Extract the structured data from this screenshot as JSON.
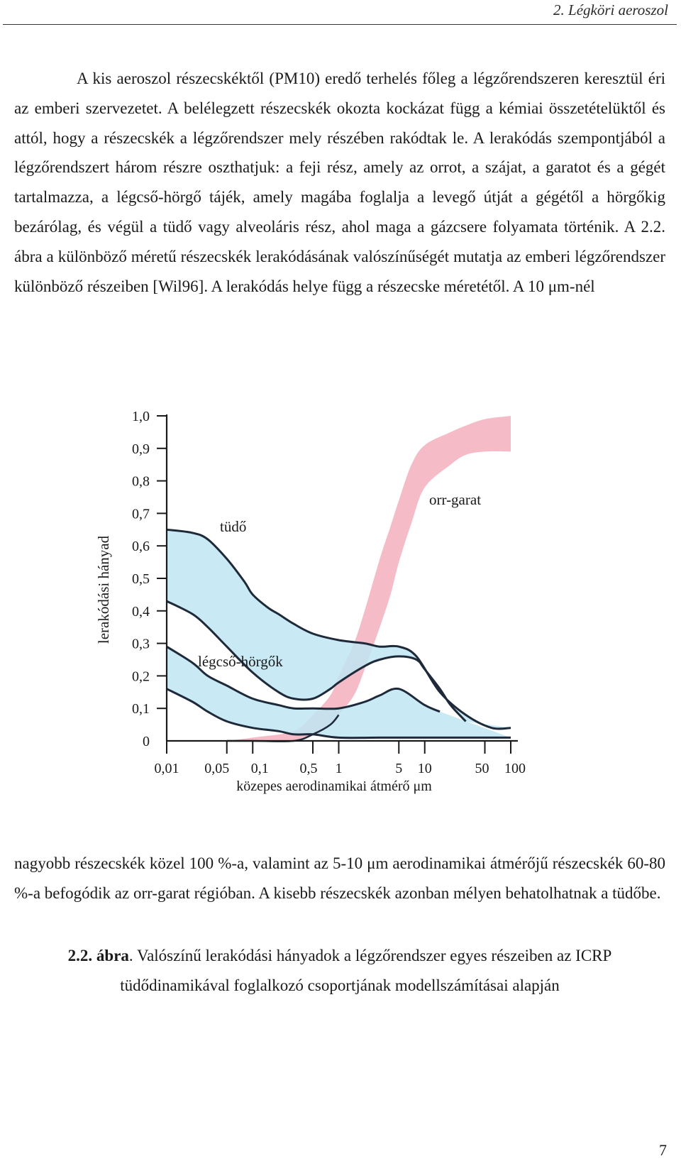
{
  "header": {
    "title": "2. Légköri aeroszol"
  },
  "paragraph1": "A kis aeroszol részecskéktől (PM10) eredő terhelés főleg a légzőrendszeren keresztül éri az emberi szervezetet. A belélegzett részecskék okozta kockázat függ a kémiai összetételüktől és attól, hogy a részecskék a légzőrendszer mely részében rakódtak le. A lerakódás szempontjából a légzőrendszert három részre oszthatjuk: a feji rész, amely az orrot, a szájat, a garatot és a gégét tartalmazza, a légcső-hörgő tájék, amely magába foglalja a levegő útját a gégétől a hörgőkig bezárólag, és végül a tüdő vagy alveoláris rész, ahol maga a gázcsere folyamata történik. A 2.2. ábra a különböző méretű részecskék lerakódásának valószínűségét mutatja az emberi légzőrendszer különböző részeiben [Wil96]. A lerakódás helye függ a részecske méretétől. A 10 μm-nél",
  "paragraph2": "nagyobb részecskék közel 100 %-a, valamint az 5-10 μm aerodinamikai átmérőjű részecskék 60-80 %-a befogódik az orr-garat régióban. A kisebb részecskék azonban mélyen behatolhatnak a tüdőbe.",
  "caption": {
    "label": "2.2. ábra",
    "text": ". Valószínű lerakódási hányadok a légzőrendszer egyes részeiben az ICRP tüdődinamikával foglalkozó csoportjának modellszámításai alapján"
  },
  "page_number": "7",
  "chart_data": {
    "type": "area",
    "xlabel": "közepes aerodinamikai átmérő μm",
    "ylabel": "lerakódási hányad",
    "x_scale": "log",
    "xlim": [
      0.01,
      100
    ],
    "ylim": [
      0,
      1.0
    ],
    "x_ticks": [
      "0,01",
      "0,05",
      "0,1",
      "0,5",
      "1",
      "5",
      "10",
      "50",
      "100"
    ],
    "x_tick_values": [
      0.01,
      0.05,
      0.1,
      0.5,
      1,
      5,
      10,
      50,
      100
    ],
    "y_ticks": [
      "0",
      "0,1",
      "0,2",
      "0,3",
      "0,4",
      "0,5",
      "0,6",
      "0,7",
      "0,8",
      "0,9",
      "1,0"
    ],
    "y_tick_values": [
      0,
      0.1,
      0.2,
      0.3,
      0.4,
      0.5,
      0.6,
      0.7,
      0.8,
      0.9,
      1.0
    ],
    "colors": {
      "band_blue": "#bfe6f2",
      "band_pink": "#f4b8c4",
      "curve": "#1e2a3a"
    },
    "series": [
      {
        "name": "tüdő",
        "color": "#bfe6f2",
        "upper": {
          "x": [
            0.01,
            0.02,
            0.03,
            0.05,
            0.08,
            0.1,
            0.15,
            0.2,
            0.3,
            0.5,
            1,
            2,
            3,
            5,
            8,
            15,
            30,
            60,
            100
          ],
          "y": [
            0.65,
            0.64,
            0.62,
            0.56,
            0.49,
            0.45,
            0.41,
            0.39,
            0.36,
            0.33,
            0.31,
            0.3,
            0.29,
            0.29,
            0.26,
            0.15,
            0.08,
            0.04,
            0.04
          ]
        },
        "lower": {
          "x": [
            0.01,
            0.02,
            0.03,
            0.05,
            0.1,
            0.2,
            0.3,
            0.5,
            0.8,
            1,
            2,
            3,
            5,
            8,
            10,
            15,
            20,
            30
          ],
          "y": [
            0.43,
            0.39,
            0.35,
            0.29,
            0.21,
            0.15,
            0.13,
            0.13,
            0.16,
            0.18,
            0.23,
            0.25,
            0.26,
            0.25,
            0.22,
            0.16,
            0.11,
            0.06
          ]
        }
      },
      {
        "name": "légcső-hörgők",
        "color": "#bfe6f2",
        "upper": {
          "x": [
            0.01,
            0.02,
            0.03,
            0.05,
            0.1,
            0.2,
            0.3,
            0.5,
            1,
            2,
            3,
            5,
            10,
            15
          ],
          "y": [
            0.29,
            0.24,
            0.2,
            0.17,
            0.13,
            0.11,
            0.1,
            0.1,
            0.1,
            0.12,
            0.14,
            0.16,
            0.11,
            0.09
          ]
        },
        "lower": {
          "x": [
            0.01,
            0.02,
            0.03,
            0.05,
            0.1,
            0.2,
            0.3,
            0.5,
            1,
            3,
            10,
            30,
            60,
            100
          ],
          "y": [
            0.16,
            0.12,
            0.09,
            0.06,
            0.04,
            0.03,
            0.02,
            0.02,
            0.01,
            0.01,
            0.01,
            0.01,
            0.01,
            0.01
          ]
        }
      },
      {
        "name": "orr-garat",
        "color": "#f4b8c4",
        "upper": {
          "x": [
            0.05,
            0.1,
            0.3,
            0.5,
            0.8,
            1,
            1.5,
            2,
            3,
            4,
            5,
            7,
            10,
            20,
            30,
            50,
            100
          ],
          "y": [
            0.0,
            0.01,
            0.03,
            0.08,
            0.14,
            0.2,
            0.3,
            0.4,
            0.56,
            0.66,
            0.74,
            0.85,
            0.91,
            0.95,
            0.97,
            0.99,
            1.0
          ]
        },
        "lower": {
          "x": [
            0.05,
            0.1,
            0.3,
            0.5,
            0.8,
            1,
            1.5,
            2,
            3,
            4,
            5,
            7,
            10,
            20,
            30,
            50,
            100
          ],
          "y": [
            0.0,
            0.0,
            0.0,
            0.02,
            0.05,
            0.08,
            0.14,
            0.22,
            0.35,
            0.45,
            0.55,
            0.67,
            0.78,
            0.85,
            0.88,
            0.89,
            0.89
          ]
        }
      }
    ]
  }
}
